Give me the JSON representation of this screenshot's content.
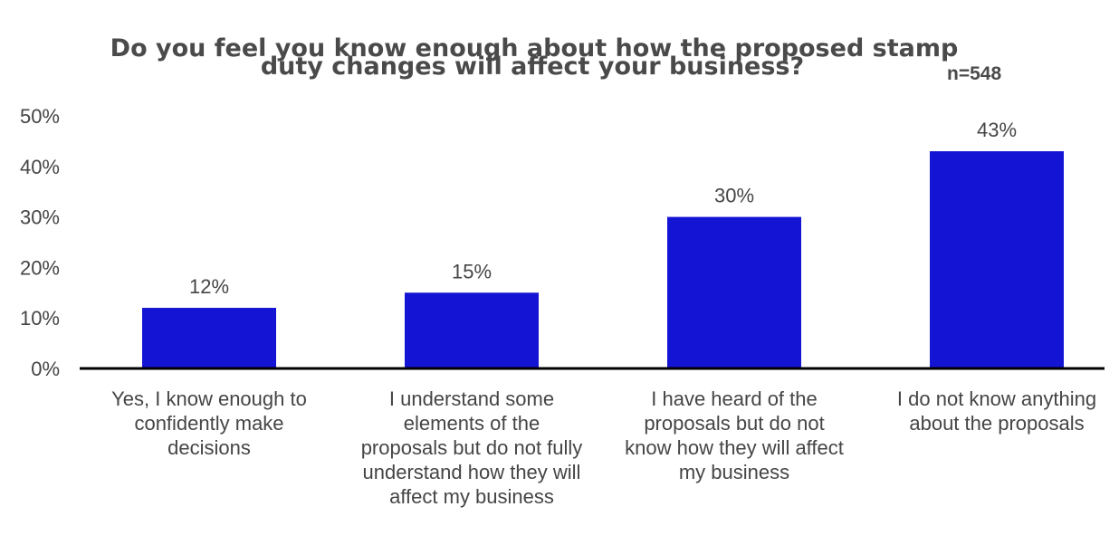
{
  "chart_data": {
    "type": "bar",
    "title_lines": [
      "Do you feel you know enough about how the proposed stamp",
      "duty changes will affect your business?"
    ],
    "annotation": "n=548",
    "categories": [
      "Yes, I know enough to confidently make decisions",
      "I understand some elements of the proposals but do not fully understand how they will affect my business",
      "I have heard of the proposals but do not know how they will affect my business",
      "I do not know anything about the proposals"
    ],
    "values": [
      12,
      15,
      30,
      43
    ],
    "data_labels": [
      "12%",
      "15%",
      "30%",
      "43%"
    ],
    "yticks": [
      "0%",
      "10%",
      "20%",
      "30%",
      "40%",
      "50%"
    ],
    "ylim": [
      0,
      50
    ],
    "grid": false,
    "bar_color": "#1414d4",
    "text_color": "#4a4a4a",
    "xlabel": "",
    "ylabel": ""
  }
}
